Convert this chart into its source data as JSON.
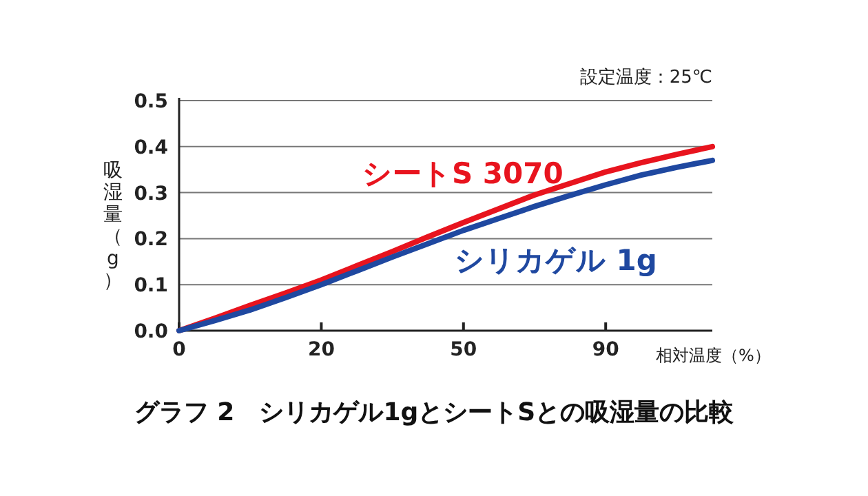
{
  "chart_data": {
    "type": "line",
    "title": "グラフ 2　シリカゲル1gとシートSとの吸湿量の比較",
    "xlabel": "相対温度（%）",
    "ylabel": "吸湿量（g）",
    "annotations": [
      "設定温度：25℃"
    ],
    "categories": [
      "0",
      null,
      null,
      null,
      "20",
      null,
      null,
      null,
      "50",
      null,
      null,
      null,
      "90",
      null,
      null,
      null
    ],
    "series": [
      {
        "name": "シートS 3070",
        "color": "#e8141e",
        "values": [
          0,
          0.027,
          0.055,
          0.082,
          0.11,
          0.141,
          0.172,
          0.204,
          0.235,
          0.265,
          0.295,
          0.32,
          0.345,
          0.365,
          0.383,
          0.4
        ]
      },
      {
        "name": "シリカゲル 1g",
        "color": "#1f48a0",
        "values": [
          0,
          0.022,
          0.045,
          0.072,
          0.1,
          0.13,
          0.16,
          0.189,
          0.218,
          0.244,
          0.27,
          0.294,
          0.317,
          0.338,
          0.355,
          0.37
        ]
      }
    ],
    "ylim": [
      0,
      0.5
    ],
    "yticks": [
      {
        "value": 0,
        "label": "0.0"
      },
      {
        "value": 0.1,
        "label": "0.1"
      },
      {
        "value": 0.2,
        "label": "0.2"
      },
      {
        "value": 0.3,
        "label": "0.3"
      },
      {
        "value": 0.4,
        "label": "0.4"
      },
      {
        "value": 0.5,
        "label": "0.5"
      }
    ],
    "grid": "y",
    "legend": false,
    "marker": "none",
    "line_style": "solid"
  }
}
